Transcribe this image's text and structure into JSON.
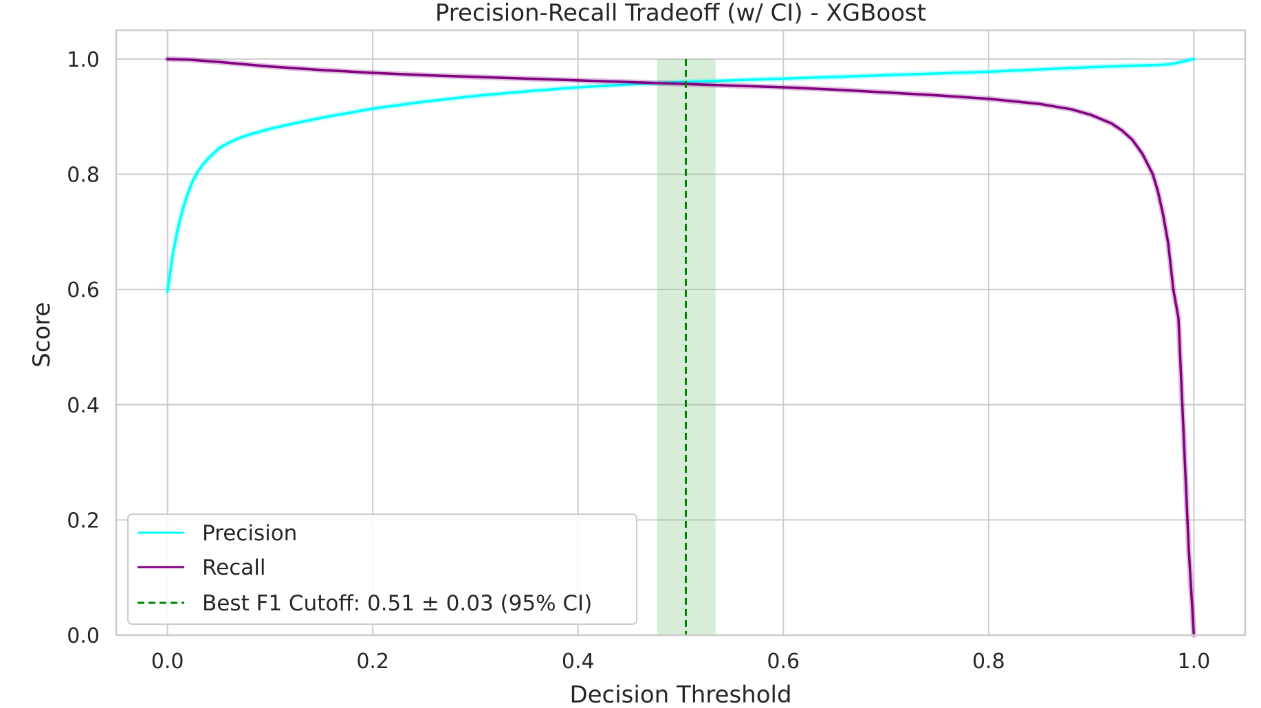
{
  "chart_data": {
    "type": "line",
    "title": "Precision-Recall Tradeoff (w/ CI) - XGBoost",
    "xlabel": "Decision Threshold",
    "ylabel": "Score",
    "xlim": [
      -0.05,
      1.05
    ],
    "ylim": [
      0.0,
      1.05
    ],
    "x_ticks": [
      "0.0",
      "0.2",
      "0.4",
      "0.6",
      "0.8",
      "1.0"
    ],
    "y_ticks": [
      "0.0",
      "0.2",
      "0.4",
      "0.6",
      "0.8",
      "1.0"
    ],
    "grid": true,
    "legend_position": "lower-left",
    "series": [
      {
        "name": "Precision",
        "color": "#00ffff",
        "x": [
          0.0,
          0.005,
          0.01,
          0.015,
          0.02,
          0.025,
          0.03,
          0.035,
          0.04,
          0.05,
          0.06,
          0.07,
          0.08,
          0.09,
          0.1,
          0.12,
          0.15,
          0.2,
          0.25,
          0.3,
          0.35,
          0.4,
          0.45,
          0.5,
          0.55,
          0.6,
          0.65,
          0.7,
          0.75,
          0.8,
          0.85,
          0.9,
          0.95,
          0.97,
          0.98,
          0.99,
          1.0
        ],
        "y": [
          0.597,
          0.66,
          0.705,
          0.74,
          0.768,
          0.79,
          0.806,
          0.818,
          0.828,
          0.845,
          0.855,
          0.863,
          0.869,
          0.874,
          0.879,
          0.887,
          0.898,
          0.914,
          0.926,
          0.936,
          0.944,
          0.951,
          0.956,
          0.96,
          0.963,
          0.966,
          0.969,
          0.972,
          0.975,
          0.978,
          0.982,
          0.986,
          0.989,
          0.99,
          0.992,
          0.996,
          1.0
        ]
      },
      {
        "name": "Recall",
        "color": "#800080",
        "x": [
          0.0,
          0.02,
          0.05,
          0.1,
          0.15,
          0.2,
          0.25,
          0.3,
          0.35,
          0.4,
          0.45,
          0.5,
          0.55,
          0.6,
          0.65,
          0.7,
          0.75,
          0.8,
          0.85,
          0.88,
          0.9,
          0.92,
          0.93,
          0.94,
          0.95,
          0.96,
          0.965,
          0.97,
          0.975,
          0.98,
          0.985,
          0.99,
          0.995,
          1.0
        ],
        "y": [
          1.0,
          0.999,
          0.995,
          0.987,
          0.981,
          0.976,
          0.972,
          0.969,
          0.966,
          0.963,
          0.96,
          0.957,
          0.954,
          0.951,
          0.947,
          0.942,
          0.937,
          0.931,
          0.922,
          0.913,
          0.903,
          0.888,
          0.876,
          0.86,
          0.835,
          0.8,
          0.77,
          0.73,
          0.68,
          0.6,
          0.55,
          0.35,
          0.15,
          0.0
        ]
      }
    ],
    "cutoff": {
      "label": "Best F1 Cutoff: 0.51 ± 0.03 (95% CI)",
      "x": 0.505,
      "ci": [
        0.477,
        0.534
      ],
      "color": "#008000",
      "band_color": "#8fca8f"
    }
  }
}
